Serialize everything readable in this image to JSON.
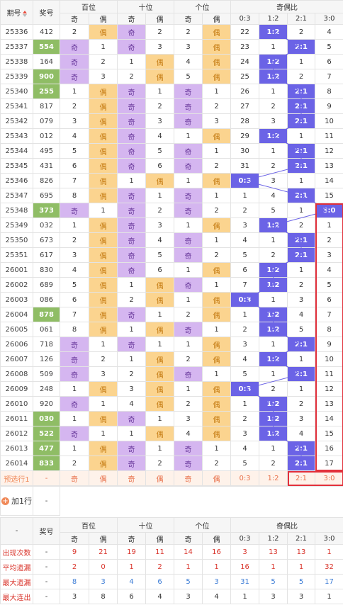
{
  "header": {
    "issue_label": "期号",
    "number_label": "奖号",
    "groups": [
      "百位",
      "十位",
      "个位",
      "奇偶比"
    ],
    "sub_ji": "奇",
    "sub_ou": "偶",
    "ratio_labels": [
      "0:3",
      "1:2",
      "2:1",
      "3:0"
    ]
  },
  "rows": [
    {
      "issue": "25336",
      "num": "412",
      "hl": false,
      "b": "偶",
      "s": "奇",
      "g": "偶",
      "r": "1:2"
    },
    {
      "issue": "25337",
      "num": "554",
      "hl": true,
      "b": "奇",
      "s": "奇",
      "g": "偶",
      "r": "2:1"
    },
    {
      "issue": "25338",
      "num": "164",
      "hl": false,
      "b": "奇",
      "s": "偶",
      "g": "偶",
      "r": "1:2"
    },
    {
      "issue": "25339",
      "num": "900",
      "hl": true,
      "b": "奇",
      "s": "偶",
      "g": "偶",
      "r": "1:2"
    },
    {
      "issue": "25340",
      "num": "255",
      "hl": true,
      "b": "偶",
      "s": "奇",
      "g": "奇",
      "r": "2:1"
    },
    {
      "issue": "25341",
      "num": "817",
      "hl": false,
      "b": "偶",
      "s": "奇",
      "g": "奇",
      "r": "2:1"
    },
    {
      "issue": "25342",
      "num": "079",
      "hl": false,
      "b": "偶",
      "s": "奇",
      "g": "奇",
      "r": "2:1"
    },
    {
      "issue": "25343",
      "num": "012",
      "hl": false,
      "b": "偶",
      "s": "奇",
      "g": "偶",
      "r": "1:2"
    },
    {
      "issue": "25344",
      "num": "495",
      "hl": false,
      "b": "偶",
      "s": "奇",
      "g": "奇",
      "r": "2:1"
    },
    {
      "issue": "25345",
      "num": "431",
      "hl": false,
      "b": "偶",
      "s": "奇",
      "g": "奇",
      "r": "2:1"
    },
    {
      "issue": "25346",
      "num": "826",
      "hl": false,
      "b": "偶",
      "s": "偶",
      "g": "偶",
      "r": "0:3"
    },
    {
      "issue": "25347",
      "num": "695",
      "hl": false,
      "b": "偶",
      "s": "奇",
      "g": "奇",
      "r": "2:1"
    },
    {
      "issue": "25348",
      "num": "373",
      "hl": true,
      "b": "奇",
      "s": "奇",
      "g": "奇",
      "r": "3:0"
    },
    {
      "issue": "25349",
      "num": "032",
      "hl": false,
      "b": "偶",
      "s": "奇",
      "g": "偶",
      "r": "1:2"
    },
    {
      "issue": "25350",
      "num": "673",
      "hl": false,
      "b": "偶",
      "s": "奇",
      "g": "奇",
      "r": "2:1"
    },
    {
      "issue": "25351",
      "num": "617",
      "hl": false,
      "b": "偶",
      "s": "奇",
      "g": "奇",
      "r": "2:1"
    },
    {
      "issue": "26001",
      "num": "830",
      "hl": false,
      "b": "偶",
      "s": "奇",
      "g": "偶",
      "r": "1:2"
    },
    {
      "issue": "26002",
      "num": "689",
      "hl": false,
      "b": "偶",
      "s": "偶",
      "g": "奇",
      "r": "1:2"
    },
    {
      "issue": "26003",
      "num": "086",
      "hl": false,
      "b": "偶",
      "s": "偶",
      "g": "偶",
      "r": "0:3"
    },
    {
      "issue": "26004",
      "num": "878",
      "hl": true,
      "b": "偶",
      "s": "奇",
      "g": "偶",
      "r": "1:2"
    },
    {
      "issue": "26005",
      "num": "061",
      "hl": false,
      "b": "偶",
      "s": "偶",
      "g": "奇",
      "r": "1:2"
    },
    {
      "issue": "26006",
      "num": "718",
      "hl": false,
      "b": "奇",
      "s": "奇",
      "g": "偶",
      "r": "2:1"
    },
    {
      "issue": "26007",
      "num": "126",
      "hl": false,
      "b": "奇",
      "s": "偶",
      "g": "偶",
      "r": "1:2"
    },
    {
      "issue": "26008",
      "num": "509",
      "hl": false,
      "b": "奇",
      "s": "偶",
      "g": "奇",
      "r": "2:1"
    },
    {
      "issue": "26009",
      "num": "248",
      "hl": false,
      "b": "偶",
      "s": "偶",
      "g": "偶",
      "r": "0:3"
    },
    {
      "issue": "26010",
      "num": "920",
      "hl": false,
      "b": "奇",
      "s": "偶",
      "g": "偶",
      "r": "1:2"
    },
    {
      "issue": "26011",
      "num": "030",
      "hl": true,
      "b": "偶",
      "s": "奇",
      "g": "偶",
      "r": "1:2"
    },
    {
      "issue": "26012",
      "num": "522",
      "hl": true,
      "b": "奇",
      "s": "偶",
      "g": "偶",
      "r": "1:2"
    },
    {
      "issue": "26013",
      "num": "477",
      "hl": true,
      "b": "偶",
      "s": "奇",
      "g": "奇",
      "r": "2:1"
    },
    {
      "issue": "26014",
      "num": "833",
      "hl": true,
      "b": "偶",
      "s": "奇",
      "g": "奇",
      "r": "2:1"
    }
  ],
  "misses": [
    [
      "2",
      "2",
      "2",
      "22",
      "4"
    ],
    [
      "1",
      "3",
      "3",
      "23",
      "5"
    ],
    [
      "2",
      "1",
      "4",
      "24",
      "6"
    ],
    [
      "3",
      "2",
      "5",
      "25",
      "7"
    ],
    [
      "1",
      "1",
      "1",
      "26",
      "8"
    ],
    [
      "2",
      "2",
      "2",
      "27",
      "9"
    ],
    [
      "3",
      "3",
      "3",
      "28",
      "10"
    ],
    [
      "4",
      "4",
      "1",
      "29",
      "11"
    ],
    [
      "5",
      "5",
      "1",
      "30",
      "12"
    ],
    [
      "6",
      "6",
      "2",
      "31",
      "13"
    ],
    [
      "7",
      "1",
      "1",
      "3",
      "14"
    ],
    [
      "8",
      "1",
      "1",
      "1",
      "15"
    ],
    [
      "1",
      "2",
      "2",
      "2",
      "5"
    ],
    [
      "1",
      "3",
      "3",
      "3",
      "2"
    ],
    [
      "2",
      "4",
      "1",
      "4",
      "1"
    ],
    [
      "3",
      "5",
      "2",
      "5",
      "2"
    ],
    [
      "4",
      "6",
      "1",
      "6",
      "1"
    ],
    [
      "5",
      "1",
      "2",
      "7",
      "2"
    ],
    [
      "6",
      "2",
      "3",
      "1",
      "3"
    ],
    [
      "7",
      "1",
      "2",
      "1",
      "4"
    ],
    [
      "8",
      "1",
      "1",
      "2",
      "5"
    ],
    [
      "1",
      "1",
      "1",
      "3",
      "1"
    ],
    [
      "2",
      "2",
      "2",
      "4",
      "1"
    ],
    [
      "3",
      "3",
      "1",
      "5",
      "1"
    ],
    [
      "1",
      "4",
      "2",
      "1",
      "2"
    ],
    [
      "1",
      "5",
      "3",
      "1",
      "1"
    ],
    [
      "2",
      "1",
      "4",
      "2",
      "1"
    ],
    [
      "3",
      "2",
      "5",
      "3",
      "1"
    ],
    [
      "4",
      "3",
      "1",
      "4",
      "1"
    ],
    [
      "5",
      "4",
      "2",
      "5",
      "1"
    ]
  ],
  "ratio_misses": [
    [
      "22",
      "1:2",
      "2",
      "4"
    ],
    [
      "23",
      "1",
      "2:1",
      "5"
    ],
    [
      "24",
      "1:2",
      "1",
      "6"
    ],
    [
      "25",
      "1:2",
      "2",
      "7"
    ],
    [
      "26",
      "1",
      "2:1",
      "8"
    ],
    [
      "27",
      "2",
      "2:1",
      "9"
    ],
    [
      "28",
      "3",
      "2:1",
      "10"
    ],
    [
      "29",
      "1:2",
      "1",
      "11"
    ],
    [
      "30",
      "1",
      "2:1",
      "12"
    ],
    [
      "31",
      "2",
      "2:1",
      "13"
    ],
    [
      "0:3",
      "3",
      "1",
      "14"
    ],
    [
      "1",
      "4",
      "2:1",
      "15"
    ],
    [
      "2",
      "5",
      "1",
      "3:0"
    ],
    [
      "3",
      "1:2",
      "2",
      "1"
    ],
    [
      "4",
      "1",
      "2:1",
      "2"
    ],
    [
      "5",
      "2",
      "2:1",
      "3"
    ],
    [
      "6",
      "1:2",
      "1",
      "4"
    ],
    [
      "7",
      "1:2",
      "2",
      "5"
    ],
    [
      "0:3",
      "1",
      "3",
      "6"
    ],
    [
      "1",
      "1:2",
      "4",
      "7"
    ],
    [
      "2",
      "1:2",
      "5",
      "8"
    ],
    [
      "3",
      "1",
      "2:1",
      "9"
    ],
    [
      "4",
      "1:2",
      "1",
      "10"
    ],
    [
      "5",
      "1",
      "2:1",
      "11"
    ],
    [
      "0:3",
      "2",
      "1",
      "12"
    ],
    [
      "1",
      "1:2",
      "2",
      "13"
    ],
    [
      "2",
      "1:2",
      "3",
      "14"
    ],
    [
      "3",
      "1:2",
      "4",
      "15"
    ],
    [
      "4",
      "1",
      "2:1",
      "16"
    ],
    [
      "5",
      "2",
      "2:1",
      "17"
    ]
  ],
  "cell_values": {
    "hundred": [
      [
        "2",
        "偶"
      ],
      [
        "奇",
        "1"
      ],
      [
        "奇",
        "2"
      ],
      [
        "奇",
        "3"
      ],
      [
        "1",
        "偶"
      ],
      [
        "2",
        "偶"
      ],
      [
        "3",
        "偶"
      ],
      [
        "4",
        "偶"
      ],
      [
        "5",
        "偶"
      ],
      [
        "6",
        "偶"
      ],
      [
        "7",
        "偶"
      ],
      [
        "8",
        "偶"
      ],
      [
        "奇",
        "1"
      ],
      [
        "1",
        "偶"
      ],
      [
        "2",
        "偶"
      ],
      [
        "3",
        "偶"
      ],
      [
        "4",
        "偶"
      ],
      [
        "5",
        "偶"
      ],
      [
        "6",
        "偶"
      ],
      [
        "7",
        "偶"
      ],
      [
        "8",
        "偶"
      ],
      [
        "奇",
        "1"
      ],
      [
        "奇",
        "2"
      ],
      [
        "奇",
        "3"
      ],
      [
        "1",
        "偶"
      ],
      [
        "奇",
        "1"
      ],
      [
        "1",
        "偶"
      ],
      [
        "奇",
        "1"
      ],
      [
        "1",
        "偶"
      ],
      [
        "2",
        "偶"
      ]
    ],
    "ten": [
      [
        "奇",
        "2"
      ],
      [
        "奇",
        "3"
      ],
      [
        "1",
        "偶"
      ],
      [
        "2",
        "偶"
      ],
      [
        "奇",
        "1"
      ],
      [
        "奇",
        "2"
      ],
      [
        "奇",
        "3"
      ],
      [
        "奇",
        "4"
      ],
      [
        "奇",
        "5"
      ],
      [
        "奇",
        "6"
      ],
      [
        "1",
        "偶"
      ],
      [
        "奇",
        "1"
      ],
      [
        "奇",
        "2"
      ],
      [
        "奇",
        "3"
      ],
      [
        "奇",
        "4"
      ],
      [
        "奇",
        "5"
      ],
      [
        "奇",
        "6"
      ],
      [
        "1",
        "偶"
      ],
      [
        "2",
        "偶"
      ],
      [
        "奇",
        "1"
      ],
      [
        "1",
        "偶"
      ],
      [
        "奇",
        "1"
      ],
      [
        "1",
        "偶"
      ],
      [
        "2",
        "偶"
      ],
      [
        "3",
        "偶"
      ],
      [
        "4",
        "偶"
      ],
      [
        "奇",
        "1"
      ],
      [
        "1",
        "偶"
      ],
      [
        "奇",
        "1"
      ],
      [
        "奇",
        "2"
      ]
    ],
    "unit": [
      [
        "2",
        "偶"
      ],
      [
        "3",
        "偶"
      ],
      [
        "4",
        "偶"
      ],
      [
        "5",
        "偶"
      ],
      [
        "奇",
        "1"
      ],
      [
        "奇",
        "2"
      ],
      [
        "奇",
        "3"
      ],
      [
        "1",
        "偶"
      ],
      [
        "奇",
        "1"
      ],
      [
        "奇",
        "2"
      ],
      [
        "1",
        "偶"
      ],
      [
        "奇",
        "1"
      ],
      [
        "奇",
        "2"
      ],
      [
        "1",
        "偶"
      ],
      [
        "奇",
        "1"
      ],
      [
        "奇",
        "2"
      ],
      [
        "1",
        "偶"
      ],
      [
        "奇",
        "1"
      ],
      [
        "1",
        "偶"
      ],
      [
        "2",
        "偶"
      ],
      [
        "奇",
        "1"
      ],
      [
        "1",
        "偶"
      ],
      [
        "2",
        "偶"
      ],
      [
        "奇",
        "1"
      ],
      [
        "1",
        "偶"
      ],
      [
        "2",
        "偶"
      ],
      [
        "3",
        "偶"
      ],
      [
        "4",
        "偶"
      ],
      [
        "奇",
        "1"
      ],
      [
        "奇",
        "2"
      ]
    ]
  },
  "preselect": {
    "label": "预选行1",
    "dash": "-",
    "cells": [
      "奇",
      "偶",
      "奇",
      "偶",
      "奇",
      "偶",
      "0:3",
      "1:2",
      "2:1",
      "3:0"
    ]
  },
  "add_row": {
    "label": "加1行",
    "dash": "-"
  },
  "stats_header": {
    "dash": "-",
    "number_label": "奖号"
  },
  "stats": [
    {
      "label": "出现次数",
      "dash": "-",
      "values": [
        "9",
        "21",
        "19",
        "11",
        "14",
        "16",
        "3",
        "13",
        "13",
        "1"
      ]
    },
    {
      "label": "平均遗漏",
      "dash": "-",
      "values": [
        "2",
        "0",
        "1",
        "2",
        "1",
        "1",
        "16",
        "1",
        "1",
        "32"
      ]
    },
    {
      "label": "最大遗漏",
      "dash": "-",
      "values": [
        "8",
        "3",
        "4",
        "6",
        "5",
        "3",
        "31",
        "5",
        "5",
        "17"
      ]
    },
    {
      "label": "最大连出",
      "dash": "-",
      "values": [
        "3",
        "8",
        "6",
        "4",
        "3",
        "4",
        "1",
        "3",
        "3",
        "1"
      ]
    }
  ],
  "colors": {
    "ji": "#d5b6f0",
    "ou": "#fbd48f",
    "hit": "#6b63e6",
    "hl_number": "#8fbd65",
    "box": "#e2303b",
    "accent": "#e84b3c"
  }
}
